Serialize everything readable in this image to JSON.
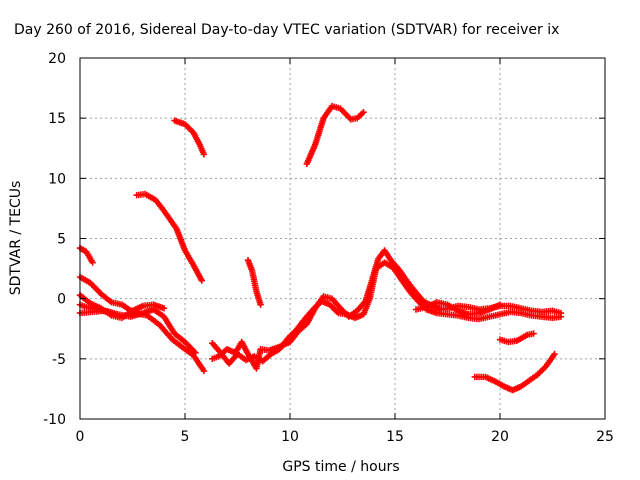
{
  "chart_data": {
    "type": "scatter",
    "title": "Day 260 of 2016, Sidereal Day-to-day VTEC variation (SDTVAR) for receiver ix",
    "xlabel": "GPS time / hours",
    "ylabel": "SDTVAR / TECUs",
    "xlim": [
      0,
      25
    ],
    "ylim": [
      -10,
      20
    ],
    "x_ticks": [
      0,
      5,
      10,
      15,
      20,
      25
    ],
    "y_ticks": [
      -10,
      -5,
      0,
      5,
      10,
      15,
      20
    ],
    "grid": true,
    "marker": "+",
    "color": "#ff0000",
    "tracks": [
      [
        [
          4.5,
          14.8
        ],
        [
          5.0,
          14.5
        ],
        [
          5.4,
          13.8
        ],
        [
          5.7,
          12.8
        ],
        [
          5.9,
          12.0
        ]
      ],
      [
        [
          10.8,
          11.2
        ],
        [
          11.2,
          12.8
        ],
        [
          11.6,
          15.0
        ],
        [
          12.0,
          16.0
        ],
        [
          12.4,
          15.8
        ],
        [
          12.9,
          14.9
        ],
        [
          13.2,
          15.0
        ],
        [
          13.5,
          15.5
        ]
      ],
      [
        [
          2.7,
          8.6
        ],
        [
          3.1,
          8.7
        ],
        [
          3.6,
          8.2
        ],
        [
          4.0,
          7.3
        ],
        [
          4.6,
          5.8
        ],
        [
          5.0,
          4.0
        ],
        [
          5.4,
          2.8
        ],
        [
          5.8,
          1.5
        ]
      ],
      [
        [
          8.0,
          3.2
        ],
        [
          8.2,
          2.3
        ],
        [
          8.4,
          0.6
        ],
        [
          8.6,
          -0.5
        ]
      ],
      [
        [
          0.0,
          4.2
        ],
        [
          0.3,
          3.9
        ],
        [
          0.6,
          3.0
        ]
      ],
      [
        [
          0.0,
          1.8
        ],
        [
          0.5,
          1.3
        ],
        [
          1.0,
          0.4
        ],
        [
          1.5,
          -0.3
        ],
        [
          2.0,
          -0.5
        ],
        [
          2.6,
          -1.2
        ],
        [
          3.2,
          -1.4
        ],
        [
          3.8,
          -2.2
        ],
        [
          4.4,
          -3.4
        ],
        [
          5.0,
          -4.2
        ],
        [
          5.4,
          -4.7
        ],
        [
          5.9,
          -6.0
        ]
      ],
      [
        [
          0.0,
          0.3
        ],
        [
          0.5,
          -0.4
        ],
        [
          1.0,
          -0.8
        ],
        [
          1.5,
          -1.4
        ],
        [
          2.0,
          -1.6
        ],
        [
          2.5,
          -1.0
        ],
        [
          3.0,
          -0.6
        ],
        [
          3.5,
          -0.5
        ],
        [
          4.0,
          -0.8
        ]
      ],
      [
        [
          0.0,
          -1.2
        ],
        [
          0.6,
          -1.1
        ],
        [
          1.2,
          -1.0
        ],
        [
          1.8,
          -1.3
        ],
        [
          2.4,
          -1.5
        ],
        [
          3.0,
          -1.2
        ],
        [
          3.5,
          -0.9
        ],
        [
          4.0,
          -1.5
        ],
        [
          4.5,
          -2.9
        ],
        [
          5.0,
          -3.6
        ],
        [
          5.5,
          -4.5
        ]
      ],
      [
        [
          0.0,
          -0.5
        ],
        [
          0.3,
          -0.7
        ],
        [
          0.8,
          -0.9
        ],
        [
          1.3,
          -1.1
        ]
      ],
      [
        [
          6.3,
          -5.0
        ],
        [
          6.6,
          -4.8
        ],
        [
          7.0,
          -4.2
        ],
        [
          7.4,
          -4.5
        ],
        [
          7.7,
          -3.6
        ],
        [
          8.0,
          -4.6
        ],
        [
          8.4,
          -5.8
        ],
        [
          8.6,
          -4.2
        ],
        [
          9.0,
          -4.3
        ],
        [
          9.5,
          -4.0
        ],
        [
          10.0,
          -3.6
        ],
        [
          10.4,
          -2.7
        ],
        [
          10.8,
          -2.1
        ],
        [
          11.2,
          -0.8
        ],
        [
          11.6,
          0.2
        ],
        [
          12.0,
          0.0
        ],
        [
          12.4,
          -0.8
        ],
        [
          12.8,
          -1.5
        ],
        [
          13.2,
          -1.0
        ],
        [
          13.6,
          -0.2
        ],
        [
          13.9,
          1.5
        ],
        [
          14.2,
          3.3
        ],
        [
          14.5,
          4.0
        ],
        [
          14.8,
          3.2
        ],
        [
          15.2,
          2.4
        ],
        [
          15.6,
          1.4
        ],
        [
          16.0,
          0.5
        ],
        [
          16.4,
          -0.3
        ],
        [
          16.8,
          -0.6
        ],
        [
          17.2,
          -0.9
        ],
        [
          17.6,
          -0.8
        ],
        [
          18.0,
          -0.6
        ],
        [
          18.5,
          -0.7
        ],
        [
          19.0,
          -0.9
        ],
        [
          19.5,
          -0.8
        ],
        [
          20.0,
          -0.6
        ],
        [
          20.5,
          -0.6
        ],
        [
          21.0,
          -0.8
        ],
        [
          21.5,
          -1.0
        ],
        [
          22.0,
          -1.1
        ],
        [
          22.5,
          -1.0
        ],
        [
          22.9,
          -1.2
        ]
      ],
      [
        [
          6.3,
          -3.7
        ],
        [
          6.7,
          -4.5
        ],
        [
          7.1,
          -5.4
        ],
        [
          7.5,
          -4.6
        ],
        [
          7.9,
          -5.1
        ],
        [
          8.3,
          -4.8
        ],
        [
          8.7,
          -5.2
        ],
        [
          9.1,
          -4.6
        ],
        [
          9.5,
          -4.2
        ],
        [
          9.9,
          -3.3
        ],
        [
          10.3,
          -2.6
        ],
        [
          10.7,
          -1.7
        ],
        [
          11.1,
          -0.9
        ],
        [
          11.5,
          -0.2
        ],
        [
          11.9,
          -0.5
        ],
        [
          12.3,
          -1.2
        ],
        [
          12.7,
          -1.3
        ],
        [
          13.1,
          -1.6
        ],
        [
          13.5,
          -1.3
        ],
        [
          13.8,
          0.0
        ],
        [
          14.1,
          2.5
        ],
        [
          14.5,
          3.0
        ],
        [
          14.9,
          2.6
        ],
        [
          15.3,
          1.6
        ],
        [
          15.7,
          0.6
        ],
        [
          16.1,
          -0.2
        ],
        [
          16.5,
          -0.9
        ],
        [
          17.0,
          -1.2
        ],
        [
          17.5,
          -1.3
        ],
        [
          18.0,
          -1.4
        ],
        [
          18.5,
          -1.6
        ],
        [
          19.0,
          -1.7
        ],
        [
          19.5,
          -1.5
        ],
        [
          20.0,
          -1.3
        ],
        [
          20.5,
          -1.1
        ],
        [
          21.0,
          -1.2
        ],
        [
          21.5,
          -1.4
        ],
        [
          22.0,
          -1.5
        ],
        [
          22.5,
          -1.6
        ],
        [
          22.9,
          -1.5
        ]
      ],
      [
        [
          16.0,
          -0.9
        ],
        [
          16.5,
          -0.7
        ],
        [
          17.0,
          -0.3
        ],
        [
          17.5,
          -0.5
        ],
        [
          18.0,
          -1.0
        ],
        [
          18.5,
          -1.3
        ],
        [
          19.0,
          -1.2
        ],
        [
          19.5,
          -0.9
        ],
        [
          20.0,
          -0.5
        ]
      ],
      [
        [
          20.0,
          -3.4
        ],
        [
          20.4,
          -3.6
        ],
        [
          20.8,
          -3.5
        ],
        [
          21.3,
          -3.0
        ],
        [
          21.6,
          -2.9
        ]
      ],
      [
        [
          18.8,
          -6.5
        ],
        [
          19.3,
          -6.5
        ],
        [
          19.8,
          -6.9
        ],
        [
          20.2,
          -7.3
        ],
        [
          20.6,
          -7.6
        ],
        [
          21.0,
          -7.3
        ],
        [
          21.4,
          -6.8
        ],
        [
          21.8,
          -6.3
        ],
        [
          22.2,
          -5.6
        ],
        [
          22.6,
          -4.6
        ]
      ]
    ]
  }
}
